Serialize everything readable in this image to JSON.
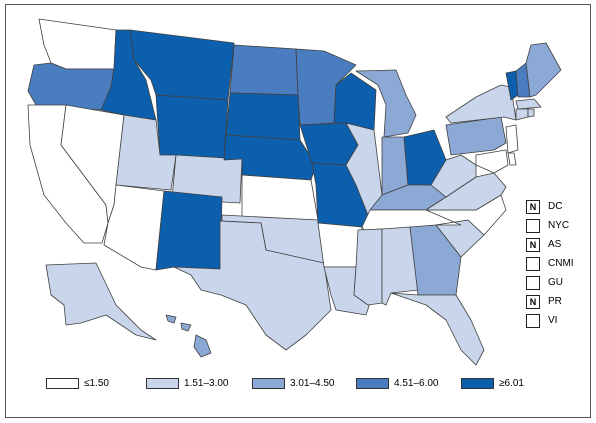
{
  "colors": {
    "c1": "#ffffff",
    "c2": "#c8d5ea",
    "c3": "#8ca8d4",
    "c4": "#4a7dc0",
    "c5": "#0c5fac",
    "border": "#404040"
  },
  "legend": [
    {
      "label": "≤1.50",
      "class": "c1"
    },
    {
      "label": "1.51–3.00",
      "class": "c2"
    },
    {
      "label": "3.01–4.50",
      "class": "c3"
    },
    {
      "label": "4.51–6.00",
      "class": "c4"
    },
    {
      "label": "≥6.01",
      "class": "c5"
    }
  ],
  "territories": [
    {
      "code": "DC",
      "mark": "N"
    },
    {
      "code": "NYC",
      "mark": ""
    },
    {
      "code": "AS",
      "mark": "N"
    },
    {
      "code": "CNMI",
      "mark": ""
    },
    {
      "code": "GU",
      "mark": ""
    },
    {
      "code": "PR",
      "mark": "N"
    },
    {
      "code": "VI",
      "mark": ""
    }
  ],
  "states": {
    "WA": "c1",
    "OR": "c4",
    "CA": "c1",
    "NV": "c1",
    "ID": "c5",
    "MT": "c5",
    "WY": "c5",
    "UT": "c2",
    "AZ": "c1",
    "CO": "c2",
    "NM": "c5",
    "ND": "c4",
    "SD": "c5",
    "NE": "c5",
    "KS": "c1",
    "OK": "c2",
    "TX": "c2",
    "MN": "c4",
    "IA": "c5",
    "MO": "c5",
    "AR": "c1",
    "LA": "c2",
    "WI": "c5",
    "IL": "c2",
    "MI": "c3",
    "IN": "c3",
    "OH": "c5",
    "KY": "c3",
    "TN": "c1",
    "MS": "c2",
    "AL": "c2",
    "GA": "c3",
    "FL": "c2",
    "SC": "c2",
    "NC": "c1",
    "VA": "c2",
    "WV": "c2",
    "PA": "c3",
    "NY": "c2",
    "VT": "c5",
    "NH": "c4",
    "ME": "c3",
    "MA": "c2",
    "CT": "c2",
    "RI": "c2",
    "NJ": "c1",
    "DE": "c1",
    "MD": "c1",
    "AK": "c2",
    "HI": "c3"
  }
}
